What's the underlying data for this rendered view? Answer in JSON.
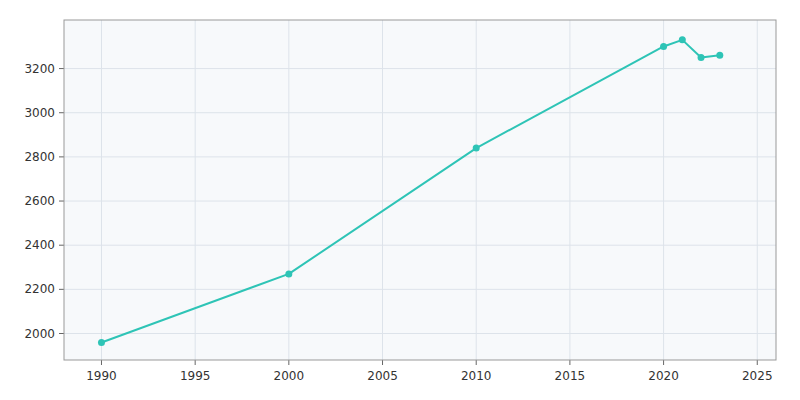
{
  "chart_data": {
    "type": "line",
    "x": [
      1990,
      2000,
      2010,
      2020,
      2021,
      2022,
      2023
    ],
    "values": [
      1959,
      2270,
      2840,
      3300,
      3330,
      3250,
      3260
    ],
    "color": "#2ec4b6",
    "marker": "circle",
    "xlim": [
      1988,
      2026
    ],
    "ylim": [
      1880,
      3420
    ],
    "xticks": [
      1990,
      1995,
      2000,
      2005,
      2010,
      2015,
      2020,
      2025
    ],
    "yticks": [
      2000,
      2200,
      2400,
      2600,
      2800,
      3000,
      3200
    ],
    "grid": true
  }
}
